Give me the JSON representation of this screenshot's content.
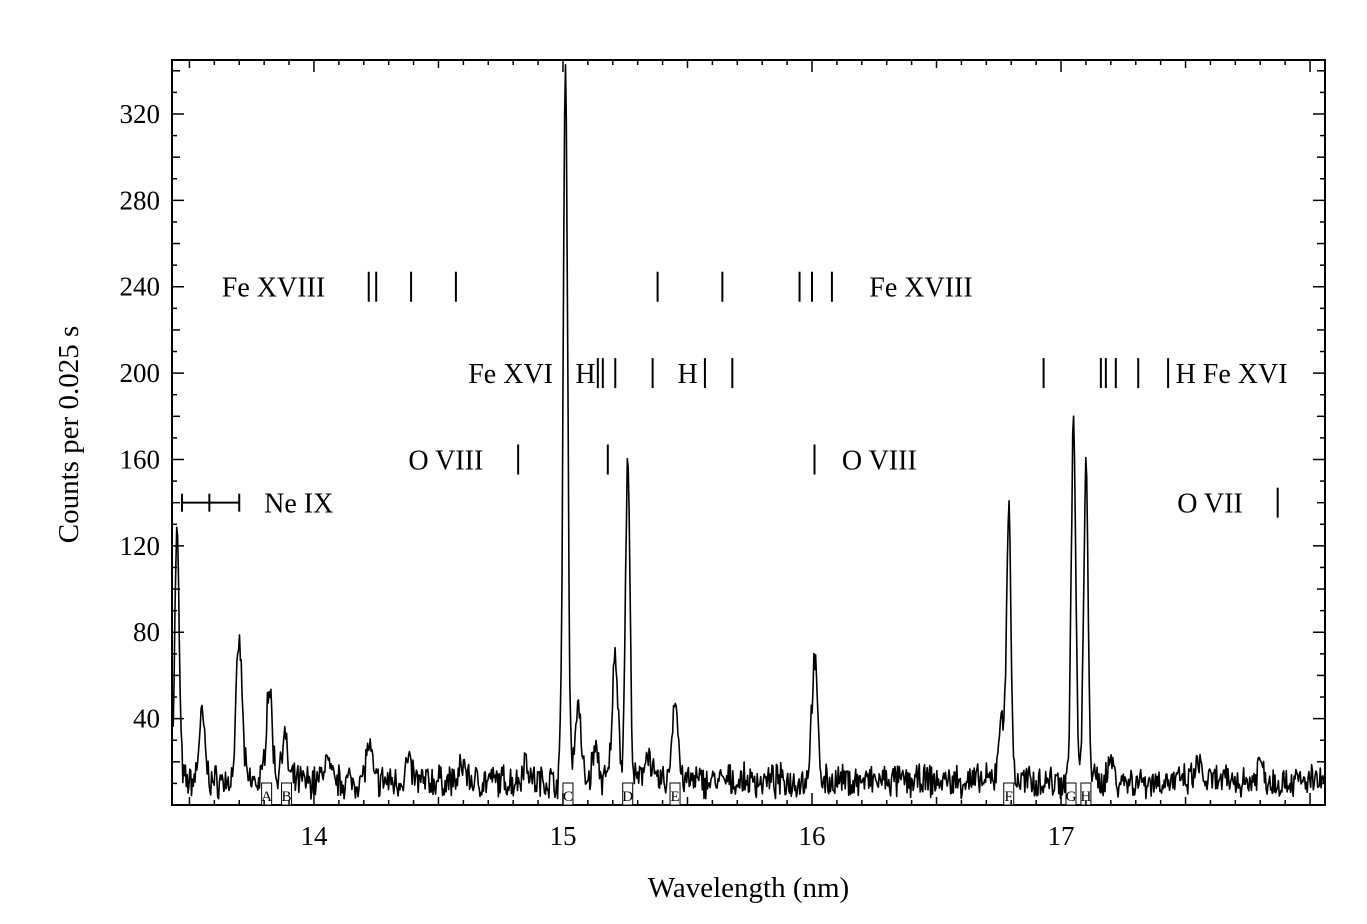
{
  "chart_data": {
    "type": "line",
    "title": "",
    "xlabel": "Wavelength (nm)",
    "ylabel": "Counts per 0.025 s",
    "xlim": [
      13.43,
      18.06
    ],
    "ylim": [
      0,
      345
    ],
    "x_ticks": [
      {
        "value": 14,
        "label": "14"
      },
      {
        "value": 15,
        "label": "15"
      },
      {
        "value": 16,
        "label": "16"
      },
      {
        "value": 17,
        "label": "17"
      }
    ],
    "y_ticks": [
      {
        "value": 40,
        "label": "40"
      },
      {
        "value": 80,
        "label": "80"
      },
      {
        "value": 120,
        "label": "120"
      },
      {
        "value": 160,
        "label": "160"
      },
      {
        "value": 200,
        "label": "200"
      },
      {
        "value": 240,
        "label": "240"
      },
      {
        "value": 280,
        "label": "280"
      },
      {
        "value": 320,
        "label": "320"
      }
    ],
    "grid": false,
    "legend": "none",
    "baseline": 11,
    "peaks": [
      [
        13.45,
        115
      ],
      [
        13.55,
        30
      ],
      [
        13.7,
        64
      ],
      [
        13.82,
        44
      ],
      [
        13.88,
        21
      ],
      [
        14.05,
        10
      ],
      [
        14.22,
        16
      ],
      [
        14.38,
        9
      ],
      [
        14.6,
        8
      ],
      [
        14.85,
        10
      ],
      [
        15.01,
        330
      ],
      [
        15.06,
        35
      ],
      [
        15.13,
        15
      ],
      [
        15.21,
        58
      ],
      [
        15.26,
        148
      ],
      [
        15.34,
        15
      ],
      [
        15.45,
        38
      ],
      [
        16.01,
        54
      ],
      [
        16.76,
        28
      ],
      [
        16.79,
        123
      ],
      [
        17.05,
        168
      ],
      [
        17.1,
        144
      ],
      [
        17.2,
        10
      ],
      [
        17.55,
        8
      ],
      [
        17.8,
        9
      ]
    ],
    "peak_labels": [
      {
        "label": "A",
        "x": 13.81
      },
      {
        "label": "B",
        "x": 13.89
      },
      {
        "label": "C",
        "x": 15.02
      },
      {
        "label": "D",
        "x": 15.26
      },
      {
        "label": "E",
        "x": 15.45
      },
      {
        "label": "F",
        "x": 16.79
      },
      {
        "label": "G",
        "x": 17.04
      },
      {
        "label": "H",
        "x": 17.1
      }
    ],
    "annotations": [
      {
        "text": "Fe XVIII",
        "x": 13.63,
        "y": 240,
        "anchor": "start",
        "lines": [
          14.22,
          14.25,
          14.39,
          14.57
        ]
      },
      {
        "text": "Fe XVIII",
        "x": 16.23,
        "y": 240,
        "anchor": "start",
        "lines": [
          15.38,
          15.64,
          15.95,
          16.0,
          16.08
        ]
      },
      {
        "text": "Fe XVI",
        "x": 14.96,
        "y": 200,
        "anchor": "end",
        "lines": [
          15.14,
          15.16,
          15.21,
          15.36,
          15.57,
          15.68,
          16.93,
          17.16,
          17.18,
          17.22,
          17.31,
          17.43
        ]
      },
      {
        "text": "H",
        "x": 15.05,
        "y": 200,
        "anchor": "start",
        "lines": []
      },
      {
        "text": "H",
        "x": 15.46,
        "y": 200,
        "anchor": "start",
        "lines": []
      },
      {
        "text": "H Fe XVI",
        "x": 17.46,
        "y": 200,
        "anchor": "start",
        "lines": []
      },
      {
        "text": "O VIII",
        "x": 14.68,
        "y": 160,
        "anchor": "end",
        "lines": [
          14.82,
          15.18
        ]
      },
      {
        "text": "O VIII",
        "x": 16.12,
        "y": 160,
        "anchor": "start",
        "lines": [
          16.01
        ]
      },
      {
        "text": "O VII",
        "x": 17.73,
        "y": 140,
        "anchor": "end",
        "lines": [
          17.87
        ]
      },
      {
        "text": "Ne IX",
        "x": 13.8,
        "y": 140,
        "anchor": "start",
        "bracket": [
          13.47,
          13.58,
          13.7
        ]
      }
    ]
  }
}
